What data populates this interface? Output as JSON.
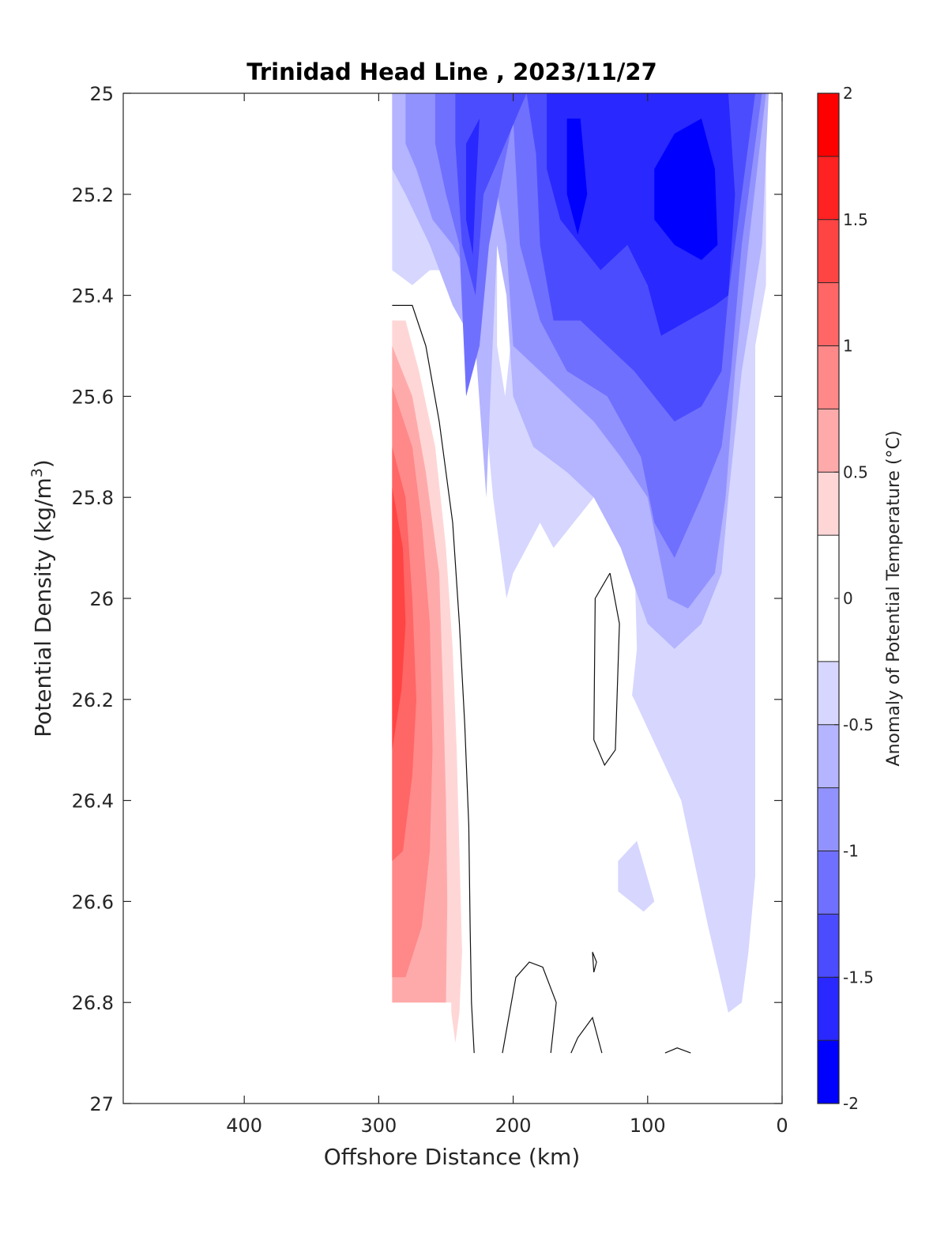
{
  "chart_data": {
    "type": "heatmap",
    "title": "Trinidad Head Line , 2023/11/27",
    "xlabel": "Offshore Distance (km)",
    "ylabel": "Potential Density (kg/m",
    "ylabel_sup": "3",
    "ylabel_close": ")",
    "xlim": [
      490,
      0
    ],
    "ylim": [
      25,
      27
    ],
    "x_reversed": true,
    "y_reversed": true,
    "xticks": [
      400,
      300,
      200,
      100,
      0
    ],
    "yticks": [
      25,
      25.2,
      25.4,
      25.6,
      25.8,
      26,
      26.2,
      26.4,
      26.6,
      26.8,
      27
    ],
    "colorbar": {
      "label": "Anomaly of Potential Temperature (°C)",
      "range": [
        -2,
        2
      ],
      "ticks": [
        "2",
        "1.5",
        "1",
        "0.5",
        "0",
        "-0.5",
        "-1",
        "-1.5",
        "-2"
      ],
      "tick_values": [
        2,
        1.5,
        1,
        0.5,
        0,
        -0.5,
        -1,
        -1.5,
        -2
      ],
      "bands": [
        {
          "from": 1.75,
          "to": 2.0,
          "color": "#ff0000"
        },
        {
          "from": 1.5,
          "to": 1.75,
          "color": "#ff2222"
        },
        {
          "from": 1.25,
          "to": 1.5,
          "color": "#ff4444"
        },
        {
          "from": 1.0,
          "to": 1.25,
          "color": "#ff6666"
        },
        {
          "from": 0.75,
          "to": 1.0,
          "color": "#ff8888"
        },
        {
          "from": 0.5,
          "to": 0.75,
          "color": "#ffaaaa"
        },
        {
          "from": 0.25,
          "to": 0.5,
          "color": "#ffd6d6"
        },
        {
          "from": -0.25,
          "to": 0.25,
          "color": "#ffffff"
        },
        {
          "from": -0.5,
          "to": -0.25,
          "color": "#d6d6ff"
        },
        {
          "from": -0.75,
          "to": -0.5,
          "color": "#b4b4ff"
        },
        {
          "from": -1.0,
          "to": -0.75,
          "color": "#9292ff"
        },
        {
          "from": -1.25,
          "to": -1.0,
          "color": "#7070ff"
        },
        {
          "from": -1.5,
          "to": -1.25,
          "color": "#4c4cff"
        },
        {
          "from": -1.75,
          "to": -1.5,
          "color": "#2828ff"
        },
        {
          "from": -2.0,
          "to": -1.75,
          "color": "#0000ff"
        }
      ]
    },
    "regions": [
      {
        "name": "neg-025",
        "color": "#d6d6ff",
        "points": [
          [
            290,
            25
          ],
          [
            12,
            25
          ],
          [
            12,
            25.38
          ],
          [
            20,
            25.5
          ],
          [
            20,
            26.55
          ],
          [
            25,
            26.7
          ],
          [
            30,
            26.8
          ],
          [
            40,
            26.82
          ],
          [
            55,
            26.65
          ],
          [
            75,
            26.4
          ],
          [
            110,
            26.2
          ],
          [
            140,
            26.05
          ],
          [
            160,
            25.95
          ],
          [
            180,
            25.85
          ],
          [
            200,
            25.95
          ],
          [
            205,
            26.0
          ],
          [
            215,
            25.8
          ],
          [
            225,
            25.5
          ],
          [
            230,
            25.42
          ],
          [
            245,
            25.35
          ],
          [
            262,
            25.35
          ],
          [
            275,
            25.38
          ],
          [
            290,
            25.35
          ]
        ]
      },
      {
        "name": "neg-025-patch",
        "color": "#d6d6ff",
        "points": [
          [
            122,
            26.52
          ],
          [
            108,
            26.48
          ],
          [
            95,
            26.6
          ],
          [
            103,
            26.62
          ],
          [
            122,
            26.58
          ]
        ]
      },
      {
        "name": "white-notch",
        "color": "#ffffff",
        "points": [
          [
            212,
            25
          ],
          [
            200,
            25
          ],
          [
            201,
            25.2
          ],
          [
            202,
            25.5
          ],
          [
            206,
            25.6
          ],
          [
            212,
            25.5
          ],
          [
            212,
            25.2
          ]
        ]
      },
      {
        "name": "white-hole",
        "color": "#ffffff",
        "points": [
          [
            140,
            25.8
          ],
          [
            120,
            25.8
          ],
          [
            110,
            25.9
          ],
          [
            108,
            26.1
          ],
          [
            115,
            26.28
          ],
          [
            140,
            26.2
          ],
          [
            170,
            26.0
          ],
          [
            170,
            25.9
          ]
        ]
      },
      {
        "name": "neg-05",
        "color": "#b4b4ff",
        "points": [
          [
            290,
            25
          ],
          [
            10,
            25
          ],
          [
            15,
            25.3
          ],
          [
            30,
            25.55
          ],
          [
            40,
            25.8
          ],
          [
            45,
            25.95
          ],
          [
            60,
            26.05
          ],
          [
            80,
            26.1
          ],
          [
            100,
            26.05
          ],
          [
            120,
            25.9
          ],
          [
            140,
            25.8
          ],
          [
            160,
            25.75
          ],
          [
            185,
            25.7
          ],
          [
            200,
            25.6
          ],
          [
            205,
            25.4
          ],
          [
            212,
            25.3
          ],
          [
            217,
            25.6
          ],
          [
            220,
            25.8
          ],
          [
            228,
            25.5
          ],
          [
            245,
            25.42
          ],
          [
            262,
            25.3
          ],
          [
            280,
            25.2
          ],
          [
            290,
            25.15
          ]
        ]
      },
      {
        "name": "neg-075",
        "color": "#9292ff",
        "points": [
          [
            280,
            25
          ],
          [
            12,
            25
          ],
          [
            25,
            25.3
          ],
          [
            35,
            25.55
          ],
          [
            42,
            25.8
          ],
          [
            50,
            25.95
          ],
          [
            70,
            26.02
          ],
          [
            85,
            26.0
          ],
          [
            100,
            25.8
          ],
          [
            120,
            25.72
          ],
          [
            140,
            25.65
          ],
          [
            160,
            25.6
          ],
          [
            180,
            25.55
          ],
          [
            200,
            25.5
          ],
          [
            205,
            25.3
          ],
          [
            215,
            25.15
          ],
          [
            225,
            25.4
          ],
          [
            245,
            25.3
          ],
          [
            260,
            25.25
          ],
          [
            272,
            25.15
          ],
          [
            280,
            25.1
          ]
        ]
      },
      {
        "name": "neg-1",
        "color": "#7070ff",
        "points": [
          [
            258,
            25
          ],
          [
            15,
            25
          ],
          [
            30,
            25.3
          ],
          [
            38,
            25.55
          ],
          [
            45,
            25.7
          ],
          [
            60,
            25.8
          ],
          [
            80,
            25.92
          ],
          [
            95,
            25.85
          ],
          [
            105,
            25.72
          ],
          [
            130,
            25.6
          ],
          [
            160,
            25.55
          ],
          [
            180,
            25.45
          ],
          [
            195,
            25.3
          ],
          [
            200,
            25.05
          ],
          [
            218,
            25.3
          ],
          [
            225,
            25.5
          ],
          [
            235,
            25.6
          ],
          [
            240,
            25.3
          ],
          [
            250,
            25.2
          ],
          [
            258,
            25.1
          ]
        ]
      },
      {
        "name": "neg-125",
        "color": "#4c4cff",
        "points": [
          [
            243,
            25
          ],
          [
            20,
            25
          ],
          [
            30,
            25.2
          ],
          [
            40,
            25.4
          ],
          [
            45,
            25.55
          ],
          [
            60,
            25.62
          ],
          [
            80,
            25.65
          ],
          [
            95,
            25.6
          ],
          [
            110,
            25.55
          ],
          [
            130,
            25.5
          ],
          [
            150,
            25.45
          ],
          [
            170,
            25.45
          ],
          [
            180,
            25.3
          ],
          [
            183,
            25.12
          ],
          [
            190,
            25.0
          ],
          [
            222,
            25.2
          ],
          [
            228,
            25.4
          ],
          [
            238,
            25.3
          ],
          [
            243,
            25.1
          ]
        ]
      },
      {
        "name": "neg-15",
        "color": "#2828ff",
        "points": [
          [
            175,
            25
          ],
          [
            40,
            25
          ],
          [
            35,
            25.2
          ],
          [
            40,
            25.4
          ],
          [
            50,
            25.42
          ],
          [
            70,
            25.45
          ],
          [
            90,
            25.48
          ],
          [
            100,
            25.38
          ],
          [
            115,
            25.3
          ],
          [
            135,
            25.35
          ],
          [
            150,
            25.3
          ],
          [
            165,
            25.25
          ],
          [
            175,
            25.15
          ]
        ]
      },
      {
        "name": "neg-15-b",
        "color": "#2828ff",
        "points": [
          [
            235,
            25.1
          ],
          [
            225,
            25.05
          ],
          [
            228,
            25.2
          ],
          [
            230,
            25.32
          ],
          [
            235,
            25.25
          ]
        ]
      },
      {
        "name": "neg-175",
        "color": "#0000ff",
        "points": [
          [
            80,
            25.08
          ],
          [
            60,
            25.05
          ],
          [
            50,
            25.15
          ],
          [
            48,
            25.3
          ],
          [
            60,
            25.33
          ],
          [
            80,
            25.3
          ],
          [
            95,
            25.25
          ],
          [
            95,
            25.15
          ]
        ]
      },
      {
        "name": "neg-175-b",
        "color": "#0000ff",
        "points": [
          [
            160,
            25.05
          ],
          [
            150,
            25.05
          ],
          [
            145,
            25.2
          ],
          [
            152,
            25.28
          ],
          [
            160,
            25.2
          ]
        ]
      },
      {
        "name": "pos-025",
        "color": "#ffd6d6",
        "points": [
          [
            290,
            25.45
          ],
          [
            280,
            25.45
          ],
          [
            270,
            25.55
          ],
          [
            258,
            25.7
          ],
          [
            250,
            25.9
          ],
          [
            245,
            26.1
          ],
          [
            242,
            26.3
          ],
          [
            240,
            26.5
          ],
          [
            238,
            26.7
          ],
          [
            240,
            26.82
          ],
          [
            243,
            26.88
          ],
          [
            246,
            26.82
          ],
          [
            246,
            26.8
          ],
          [
            290,
            26.8
          ]
        ]
      },
      {
        "name": "pos-05",
        "color": "#ffaaaa",
        "points": [
          [
            290,
            25.5
          ],
          [
            275,
            25.6
          ],
          [
            265,
            25.75
          ],
          [
            255,
            25.95
          ],
          [
            252,
            26.2
          ],
          [
            250,
            26.4
          ],
          [
            249,
            26.6
          ],
          [
            250,
            26.8
          ],
          [
            290,
            26.8
          ]
        ]
      },
      {
        "name": "pos-075",
        "color": "#ff8888",
        "points": [
          [
            290,
            25.58
          ],
          [
            275,
            25.7
          ],
          [
            268,
            25.85
          ],
          [
            262,
            26.05
          ],
          [
            260,
            26.3
          ],
          [
            262,
            26.5
          ],
          [
            268,
            26.65
          ],
          [
            280,
            26.75
          ],
          [
            290,
            26.75
          ]
        ]
      },
      {
        "name": "pos-1",
        "color": "#ff6666",
        "points": [
          [
            290,
            25.7
          ],
          [
            280,
            25.8
          ],
          [
            275,
            26.0
          ],
          [
            272,
            26.2
          ],
          [
            275,
            26.35
          ],
          [
            282,
            26.5
          ],
          [
            290,
            26.52
          ]
        ]
      },
      {
        "name": "pos-125",
        "color": "#ff4444",
        "points": [
          [
            290,
            25.78
          ],
          [
            282,
            25.9
          ],
          [
            280,
            26.05
          ],
          [
            283,
            26.18
          ],
          [
            290,
            26.3
          ]
        ]
      }
    ],
    "contour_lines": [
      {
        "name": "zero-contour-main",
        "points": [
          [
            290,
            25.42
          ],
          [
            275,
            25.42
          ],
          [
            265,
            25.5
          ],
          [
            255,
            25.65
          ],
          [
            245,
            25.85
          ],
          [
            240,
            26.05
          ],
          [
            236,
            26.25
          ],
          [
            233,
            26.45
          ],
          [
            232,
            26.65
          ],
          [
            231,
            26.8
          ],
          [
            229,
            26.9
          ]
        ]
      },
      {
        "name": "zero-contour-loop-1",
        "points": [
          [
            128,
            25.95
          ],
          [
            121,
            26.05
          ],
          [
            124,
            26.3
          ],
          [
            132,
            26.33
          ],
          [
            140,
            26.28
          ],
          [
            139,
            26.0
          ],
          [
            128,
            25.95
          ]
        ]
      },
      {
        "name": "zero-contour-arc-1",
        "points": [
          [
            208,
            26.9
          ],
          [
            198,
            26.75
          ],
          [
            188,
            26.72
          ],
          [
            178,
            26.73
          ],
          [
            168,
            26.8
          ],
          [
            170,
            26.85
          ],
          [
            172,
            26.9
          ]
        ]
      },
      {
        "name": "zero-contour-arc-2",
        "points": [
          [
            157,
            26.9
          ],
          [
            152,
            26.87
          ],
          [
            141,
            26.83
          ],
          [
            134,
            26.9
          ]
        ]
      },
      {
        "name": "zero-contour-loop-2",
        "points": [
          [
            141,
            26.7
          ],
          [
            138,
            26.72
          ],
          [
            140,
            26.74
          ],
          [
            141,
            26.7
          ]
        ]
      },
      {
        "name": "zero-contour-arc-3",
        "points": [
          [
            87,
            26.9
          ],
          [
            78,
            26.89
          ],
          [
            68,
            26.9
          ]
        ]
      }
    ]
  }
}
